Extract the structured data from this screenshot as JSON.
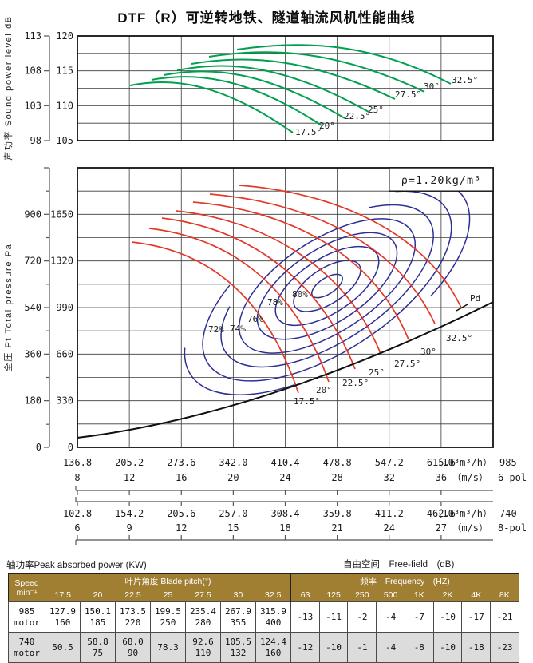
{
  "title": "DTF（R）可逆转地铁、隧道轴流风机性能曲线",
  "density_note": "ρ=1.20kg/m³",
  "pd_label": "Pd",
  "colors": {
    "green": "#00a04e",
    "red": "#e23a28",
    "blue": "#2e2e96",
    "line": "#1a1a1a",
    "table_header_bg": "#a07f33",
    "table_header_text": "#ffffff",
    "row_alt_bg": "#dcdcdc"
  },
  "sound_chart": {
    "axis_caption": "声功率 Sound power level dB",
    "outer_ticks": [
      "113",
      "108",
      "103",
      "98"
    ],
    "inner_ticks": [
      "120",
      "115",
      "110",
      "105"
    ],
    "curve_labels": [
      "17.5°",
      "20°",
      "22.5°",
      "25°",
      "27.5°",
      "30°",
      "32.5°"
    ]
  },
  "pressure_chart": {
    "axis_caption": "全压 Pt Total pressure Pa",
    "outer_ticks": [
      "900",
      "720",
      "540",
      "360",
      "180",
      "0"
    ],
    "inner_ticks": [
      "1650",
      "1320",
      "990",
      "660",
      "330",
      "0"
    ],
    "efficiency_labels": [
      "72%",
      "74%",
      "76%",
      "78%",
      "80%"
    ],
    "curve_labels": [
      "17.5°",
      "20°",
      "22.5°",
      "25°",
      "27.5°",
      "30°",
      "32.5°"
    ]
  },
  "x_scales": [
    {
      "flow": [
        "136.8",
        "205.2",
        "273.6",
        "342.0",
        "410.4",
        "478.8",
        "547.2",
        "615.6"
      ],
      "velocity": [
        "8",
        "12",
        "16",
        "20",
        "24",
        "28",
        "32",
        "36"
      ],
      "flow_unit": "（10³m³/h）",
      "velocity_unit": "（m/s）",
      "speed": "985",
      "poles": "6-pol"
    },
    {
      "flow": [
        "102.8",
        "154.2",
        "205.6",
        "257.0",
        "308.4",
        "359.8",
        "411.2",
        "462.6"
      ],
      "velocity": [
        "6",
        "9",
        "12",
        "15",
        "18",
        "21",
        "24",
        "27"
      ],
      "flow_unit": "（10³m³/h）",
      "velocity_unit": "（m/s）",
      "speed": "740",
      "poles": "8-pol"
    }
  ],
  "table": {
    "power_caption": "轴功率Peak absorbed power (KW)",
    "freefield_caption": "自由空间　Free-field　(dB)",
    "speed_header": [
      "Speed",
      "min⁻¹"
    ],
    "pitch_group": "叶片角度 Blade pitch(°)",
    "freq_group": "频率　Frequency　(HZ)",
    "pitch_cols": [
      "17.5",
      "20",
      "22.5",
      "25",
      "27.5",
      "30",
      "32.5"
    ],
    "freq_cols": [
      "63",
      "125",
      "250",
      "500",
      "1K",
      "2K",
      "4K",
      "8K"
    ],
    "rows": [
      {
        "speed": [
          "985",
          "motor"
        ],
        "power": [
          [
            "127.9",
            "160"
          ],
          [
            "150.1",
            "185"
          ],
          [
            "173.5",
            "220"
          ],
          [
            "199.5",
            "250"
          ],
          [
            "235.4",
            "280"
          ],
          [
            "267.9",
            "355"
          ],
          [
            "315.9",
            "400"
          ]
        ],
        "noise": [
          "-13",
          "-11",
          "-2",
          "-4",
          "-7",
          "-10",
          "-17",
          "-21"
        ]
      },
      {
        "speed": [
          "740",
          "motor"
        ],
        "power": [
          [
            "50.5"
          ],
          [
            "58.8",
            "75"
          ],
          [
            "68.0",
            "90"
          ],
          [
            "78.3"
          ],
          [
            "92.6",
            "110"
          ],
          [
            "105.5",
            "132"
          ],
          [
            "124.4",
            "160"
          ]
        ],
        "noise": [
          "-12",
          "-10",
          "-1",
          "-4",
          "-8",
          "-10",
          "-18",
          "-23"
        ]
      }
    ]
  },
  "chart_data": [
    {
      "type": "line",
      "title": "声功率 Sound power level",
      "ylabel": "Sound power level dB",
      "xlabel": "Flow (10³m³/h) / velocity (m/s), shared scales for 985 and 740 min⁻¹",
      "y_axis_inner_ticks": [
        120,
        115,
        110,
        105
      ],
      "y_axis_outer_ticks": [
        113,
        108,
        103,
        98
      ],
      "legend_position": "curve-end labels",
      "grid": true,
      "series": [
        {
          "name": "17.5°",
          "points_v_dB": [
            [
              12.0,
              113.0
            ],
            [
              16.5,
              113.7
            ],
            [
              24.8,
              106.2
            ]
          ]
        },
        {
          "name": "20°",
          "points_v_dB": [
            [
              13.8,
              113.7
            ],
            [
              18.0,
              114.3
            ],
            [
              27.0,
              107.3
            ]
          ]
        },
        {
          "name": "22.5°",
          "points_v_dB": [
            [
              14.7,
              114.4
            ],
            [
              20.0,
              115.0
            ],
            [
              28.8,
              108.2
            ]
          ]
        },
        {
          "name": "25°",
          "points_v_dB": [
            [
              15.8,
              115.1
            ],
            [
              22.0,
              115.7
            ],
            [
              30.7,
              109.2
            ]
          ]
        },
        {
          "name": "27.5°",
          "points_v_dB": [
            [
              16.9,
              116.0
            ],
            [
              24.0,
              116.6
            ],
            [
              32.8,
              111.0
            ]
          ]
        },
        {
          "name": "30°",
          "points_v_dB": [
            [
              18.3,
              117.0
            ],
            [
              26.0,
              117.6
            ],
            [
              35.1,
              112.0
            ]
          ]
        },
        {
          "name": "32.5°",
          "points_v_dB": [
            [
              20.4,
              118.0
            ],
            [
              28.5,
              118.6
            ],
            [
              37.0,
              113.1
            ]
          ]
        }
      ]
    },
    {
      "type": "line",
      "title": "全压 Pt Total pressure (ρ=1.20kg/m³)",
      "ylabel": "Pt Total pressure Pa",
      "y_axis_inner_ticks": [
        1650,
        1320,
        990,
        660,
        330,
        0
      ],
      "y_axis_outer_ticks": [
        900,
        720,
        540,
        360,
        180,
        0
      ],
      "grid": true,
      "series": [
        {
          "name": "17.5°",
          "points_v_Pa": [
            [
              12.2,
              1455
            ],
            [
              18.0,
              1130
            ],
            [
              25.2,
              385
            ]
          ]
        },
        {
          "name": "20°",
          "points_v_Pa": [
            [
              13.6,
              1550
            ],
            [
              20.0,
              1210
            ],
            [
              27.6,
              465
            ]
          ]
        },
        {
          "name": "22.5°",
          "points_v_Pa": [
            [
              14.6,
              1625
            ],
            [
              22.0,
              1270
            ],
            [
              29.7,
              555
            ]
          ]
        },
        {
          "name": "25°",
          "points_v_Pa": [
            [
              15.7,
              1675
            ],
            [
              24.0,
              1330
            ],
            [
              31.7,
              650
            ]
          ]
        },
        {
          "name": "27.5°",
          "points_v_Pa": [
            [
              17.0,
              1735
            ],
            [
              26.0,
              1400
            ],
            [
              33.8,
              765
            ]
          ]
        },
        {
          "name": "30°",
          "points_v_Pa": [
            [
              18.3,
              1795
            ],
            [
              28.0,
              1470
            ],
            [
              35.9,
              875
            ]
          ]
        },
        {
          "name": "32.5°",
          "points_v_Pa": [
            [
              20.6,
              1855
            ],
            [
              30.0,
              1545
            ],
            [
              37.9,
              990
            ]
          ]
        }
      ],
      "efficiency_contours_percent": [
        72,
        74,
        76,
        78,
        80
      ],
      "pd_curve_points_v_Pa": [
        [
          8,
          38
        ],
        [
          16,
          154
        ],
        [
          24,
          346
        ],
        [
          32,
          614
        ],
        [
          36,
          778
        ]
      ],
      "annotations": [
        "ρ=1.20kg/m³",
        "Pd"
      ]
    },
    {
      "type": "table",
      "title": "轴功率 Peak absorbed power (KW) / 自由空间 Free-field (dB)",
      "pitch_deg": [
        17.5,
        20,
        22.5,
        25,
        27.5,
        30,
        32.5
      ],
      "freq_hz": [
        "63",
        "125",
        "250",
        "500",
        "1K",
        "2K",
        "4K",
        "8K"
      ],
      "rows": [
        {
          "speed_min": 985,
          "power_kw": [
            "127.9/160",
            "150.1/185",
            "173.5/220",
            "199.5/250",
            "235.4/280",
            "267.9/355",
            "315.9/400"
          ],
          "free_field_dB": [
            -13,
            -11,
            -2,
            -4,
            -7,
            -10,
            -17,
            -21
          ]
        },
        {
          "speed_min": 740,
          "power_kw": [
            "50.5",
            "58.8/75",
            "68.0/90",
            "78.3",
            "92.6/110",
            "105.5/132",
            "124.4/160"
          ],
          "free_field_dB": [
            -12,
            -10,
            -1,
            -4,
            -8,
            -10,
            -18,
            -23
          ]
        }
      ]
    }
  ]
}
